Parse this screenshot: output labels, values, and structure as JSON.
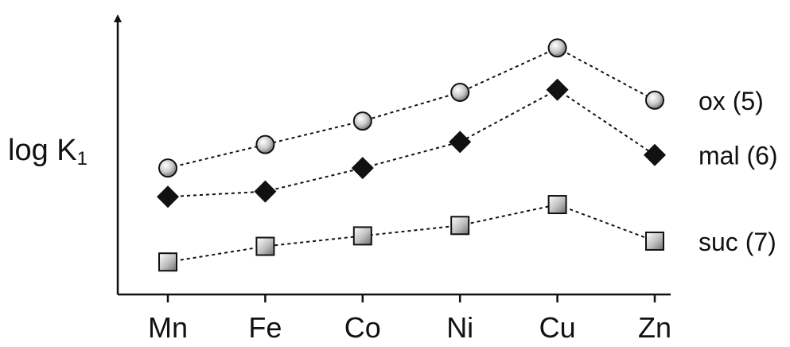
{
  "chart_data": {
    "type": "line",
    "ylabel": "log K",
    "ylabel_subscript": "1",
    "xlabel": "",
    "categories": [
      "Mn",
      "Fe",
      "Co",
      "Ni",
      "Cu",
      "Zn"
    ],
    "ylim": [
      0,
      10
    ],
    "grid": false,
    "series": [
      {
        "name": "ox (5)",
        "marker": "circle",
        "values": [
          4.6,
          5.5,
          6.4,
          7.5,
          9.2,
          7.2
        ]
      },
      {
        "name": "mal (6)",
        "marker": "diamond",
        "values": [
          3.5,
          3.7,
          4.6,
          5.6,
          7.6,
          5.1
        ]
      },
      {
        "name": "suc (7)",
        "marker": "square",
        "values": [
          1.0,
          1.6,
          2.0,
          2.4,
          3.2,
          1.8
        ]
      }
    ]
  }
}
